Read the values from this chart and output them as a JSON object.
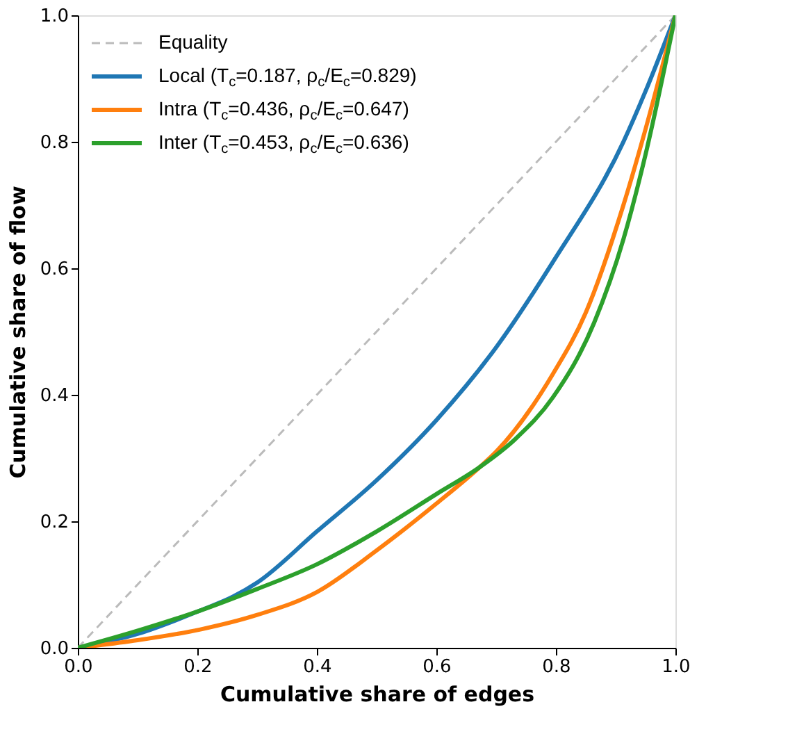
{
  "chart_data": {
    "type": "line",
    "xlabel": "Cumulative share of edges",
    "ylabel": "Cumulative share of flow",
    "xlim": [
      0,
      1
    ],
    "ylim": [
      0,
      1
    ],
    "xticks": [
      {
        "value": 0,
        "label": "0.0"
      },
      {
        "value": 0.2,
        "label": "0.2"
      },
      {
        "value": 0.4,
        "label": "0.4"
      },
      {
        "value": 0.6,
        "label": "0.6"
      },
      {
        "value": 0.8,
        "label": "0.8"
      },
      {
        "value": 1,
        "label": "1.0"
      }
    ],
    "yticks": [
      {
        "value": 0,
        "label": "0.0"
      },
      {
        "value": 0.2,
        "label": "0.2"
      },
      {
        "value": 0.4,
        "label": "0.4"
      },
      {
        "value": 0.6,
        "label": "0.6"
      },
      {
        "value": 0.8,
        "label": "0.8"
      },
      {
        "value": 1,
        "label": "1.0"
      }
    ],
    "grid": false,
    "legend": "top left",
    "marker": "none",
    "series": [
      {
        "name": "Equality",
        "color": "#bbbbbb",
        "line_style": "dashed",
        "x": [
          0,
          1
        ],
        "values": [
          0,
          1
        ]
      },
      {
        "name": "Local (T$_{c}$=0.187, ρ$_{c}$/E$_{c}$=0.829)",
        "color": "#1f77b4",
        "line_style": "solid",
        "x": [
          0,
          0.1,
          0.205,
          0.26,
          0.3,
          0.4,
          0.5,
          0.6,
          0.7,
          0.795,
          0.913,
          0.95,
          1
        ],
        "values": [
          0,
          0.022,
          0.059,
          0.081,
          0.103,
          0.184,
          0.265,
          0.36,
          0.475,
          0.61,
          0.8,
          0.88,
          1
        ]
      },
      {
        "name": "Intra (T$_{c}$=0.436, ρ$_{c}$/E$_{c}$=0.647)",
        "color": "#ff7f0e",
        "line_style": "solid",
        "x": [
          0,
          0.1,
          0.205,
          0.3,
          0.4,
          0.5,
          0.6,
          0.673,
          0.7,
          0.795,
          0.85,
          0.913,
          0.95,
          1
        ],
        "values": [
          0,
          0.012,
          0.029,
          0.052,
          0.088,
          0.154,
          0.228,
          0.286,
          0.31,
          0.433,
          0.53,
          0.7,
          0.82,
          1
        ]
      },
      {
        "name": "Inter (T$_{c}$=0.453, ρ$_{c}$/E$_{c}$=0.636)",
        "color": "#2ca02c",
        "line_style": "solid",
        "x": [
          0,
          0.1,
          0.205,
          0.3,
          0.4,
          0.5,
          0.6,
          0.673,
          0.732,
          0.795,
          0.864,
          0.913,
          0.95,
          1
        ],
        "values": [
          0,
          0.027,
          0.059,
          0.093,
          0.132,
          0.184,
          0.243,
          0.286,
          0.33,
          0.396,
          0.514,
          0.646,
          0.78,
          1
        ]
      }
    ]
  }
}
